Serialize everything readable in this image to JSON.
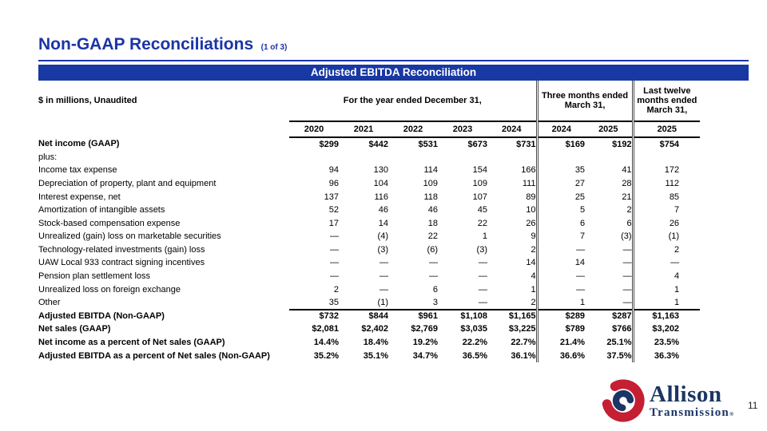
{
  "slide": {
    "title": "Non-GAAP Reconciliations",
    "title_suffix": "(1 of 3)",
    "page_number": "11"
  },
  "table": {
    "title": "Adjusted EBITDA Reconciliation",
    "units_note": "$ in millions, Unaudited",
    "col_groups": [
      {
        "label": "For the year ended December 31,",
        "years": [
          "2020",
          "2021",
          "2022",
          "2023",
          "2024"
        ]
      },
      {
        "label": "Three months ended\nMarch 31,",
        "years": [
          "2024",
          "2025"
        ]
      },
      {
        "label": "Last twelve\nmonths ended\nMarch 31,",
        "years": [
          "2025"
        ]
      }
    ],
    "rows": [
      {
        "label": "Net income (GAAP)",
        "bold": true,
        "values": [
          "$299",
          "$442",
          "$531",
          "$673",
          "$731",
          "$169",
          "$192",
          "$754"
        ]
      },
      {
        "label": "plus:",
        "bold": false,
        "values": [
          "",
          "",
          "",
          "",
          "",
          "",
          "",
          ""
        ]
      },
      {
        "label": "Income tax expense",
        "bold": false,
        "values": [
          "94",
          "130",
          "114",
          "154",
          "166",
          "35",
          "41",
          "172"
        ]
      },
      {
        "label": "Depreciation of property, plant and equipment",
        "bold": false,
        "values": [
          "96",
          "104",
          "109",
          "109",
          "111",
          "27",
          "28",
          "112"
        ]
      },
      {
        "label": "Interest expense, net",
        "bold": false,
        "values": [
          "137",
          "116",
          "118",
          "107",
          "89",
          "25",
          "21",
          "85"
        ]
      },
      {
        "label": "Amortization of intangible assets",
        "bold": false,
        "values": [
          "52",
          "46",
          "46",
          "45",
          "10",
          "5",
          "2",
          "7"
        ]
      },
      {
        "label": "Stock-based compensation expense",
        "bold": false,
        "values": [
          "17",
          "14",
          "18",
          "22",
          "26",
          "6",
          "6",
          "26"
        ]
      },
      {
        "label": "Unrealized (gain) loss on marketable securities",
        "bold": false,
        "values": [
          "—",
          "(4)",
          "22",
          "1",
          "9",
          "7",
          "(3)",
          "(1)"
        ]
      },
      {
        "label": "Technology-related investments (gain) loss",
        "bold": false,
        "values": [
          "—",
          "(3)",
          "(6)",
          "(3)",
          "2",
          "—",
          "—",
          "2"
        ]
      },
      {
        "label": "UAW Local 933 contract signing incentives",
        "bold": false,
        "values": [
          "—",
          "—",
          "—",
          "—",
          "14",
          "14",
          "—",
          "—"
        ]
      },
      {
        "label": "Pension plan settlement loss",
        "bold": false,
        "values": [
          "—",
          "—",
          "—",
          "—",
          "4",
          "—",
          "—",
          "4"
        ]
      },
      {
        "label": "Unrealized loss on foreign exchange",
        "bold": false,
        "values": [
          "2",
          "—",
          "6",
          "—",
          "1",
          "—",
          "—",
          "1"
        ]
      },
      {
        "label": "Other",
        "bold": false,
        "values": [
          "35",
          "(1)",
          "3",
          "—",
          "2",
          "1",
          "—",
          "1"
        ]
      },
      {
        "label": "Adjusted EBITDA (Non-GAAP)",
        "bold": true,
        "values": [
          "$732",
          "$844",
          "$961",
          "$1,108",
          "$1,165",
          "$289",
          "$287",
          "$1,163"
        ]
      },
      {
        "label": "Net sales (GAAP)",
        "bold": true,
        "values": [
          "$2,081",
          "$2,402",
          "$2,769",
          "$3,035",
          "$3,225",
          "$789",
          "$766",
          "$3,202"
        ]
      },
      {
        "label": "Net income as a percent of Net sales (GAAP)",
        "bold": true,
        "values": [
          "14.4%",
          "18.4%",
          "19.2%",
          "22.2%",
          "22.7%",
          "21.4%",
          "25.1%",
          "23.5%"
        ]
      },
      {
        "label": "Adjusted EBITDA as a percent of Net sales (Non-GAAP)",
        "bold": true,
        "values": [
          "35.2%",
          "35.1%",
          "34.7%",
          "36.5%",
          "36.1%",
          "36.6%",
          "37.5%",
          "36.3%"
        ]
      }
    ]
  },
  "logo": {
    "name": "Allison",
    "subname": "Transmission",
    "reg": "®"
  },
  "colors": {
    "accent_blue": "#1C35A5",
    "bar_blue": "#1838A3",
    "logo_navy": "#1C3566",
    "logo_red": "#C41F33"
  }
}
